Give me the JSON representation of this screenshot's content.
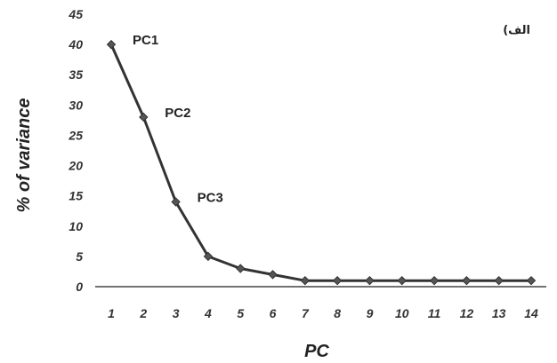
{
  "chart_data": {
    "type": "line",
    "x": [
      1,
      2,
      3,
      4,
      5,
      6,
      7,
      8,
      9,
      10,
      11,
      12,
      13,
      14
    ],
    "categories": [
      "1",
      "2",
      "3",
      "4",
      "5",
      "6",
      "7",
      "8",
      "9",
      "10",
      "11",
      "12",
      "13",
      "14"
    ],
    "series": [
      {
        "values": [
          40,
          28,
          14,
          5,
          3,
          2,
          1,
          1,
          1,
          1,
          1,
          1,
          1,
          1
        ]
      }
    ],
    "xlabel": "PC",
    "ylabel": "% of variance",
    "ylim": [
      0,
      45
    ],
    "yticks": [
      "0",
      "5",
      "10",
      "15",
      "20",
      "25",
      "30",
      "35",
      "40",
      "45"
    ],
    "annotations": [
      {
        "text": "PC1",
        "x": 1,
        "y": 40
      },
      {
        "text": "PC2",
        "x": 2,
        "y": 28
      },
      {
        "text": "PC3",
        "x": 3,
        "y": 14
      }
    ],
    "panel_label": "(الف",
    "grid": false,
    "line_color": "#333333",
    "marker_color": "#555555"
  }
}
